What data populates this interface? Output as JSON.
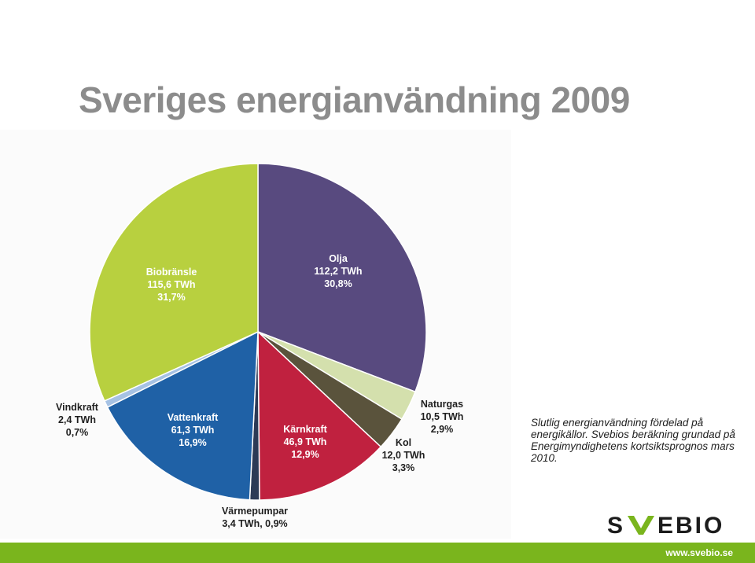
{
  "title": "Sveriges energianvändning 2009",
  "note": "Slutlig energianvändning fördelad på energikällor. Svebios beräkning grundad på Energimyndighetens kortsiktsprognos mars 2010.",
  "logo": {
    "text": "SVEBIO",
    "accent": "#7ab51d",
    "dark": "#1c1c1c"
  },
  "footer": {
    "url": "www.svebio.se",
    "bar_color": "#7ab51d"
  },
  "chart_data": {
    "type": "pie",
    "unit": "TWh",
    "slices": [
      {
        "name": "Olja",
        "value": 112.2,
        "value_label": "112,2 TWh",
        "percent_label": "30,8%",
        "color": "#584a7f"
      },
      {
        "name": "Naturgas",
        "value": 10.5,
        "value_label": "10,5 TWh",
        "percent_label": "2,9%",
        "color": "#d4e0ad"
      },
      {
        "name": "Kol",
        "value": 12.0,
        "value_label": "12,0 TWh",
        "percent_label": "3,3%",
        "color": "#5a533c"
      },
      {
        "name": "Kärnkraft",
        "value": 46.9,
        "value_label": "46,9 TWh",
        "percent_label": "12,9%",
        "color": "#c0213f"
      },
      {
        "name": "Värmepumpar",
        "value": 3.4,
        "value_label": "3,4 TWh, 0,9%",
        "percent_label": "",
        "color": "#2c3a56"
      },
      {
        "name": "Vattenkraft",
        "value": 61.3,
        "value_label": "61,3 TWh",
        "percent_label": "16,9%",
        "color": "#1f61a6"
      },
      {
        "name": "Vindkraft",
        "value": 2.4,
        "value_label": "2,4 TWh",
        "percent_label": "0,7%",
        "color": "#a6c2e4"
      },
      {
        "name": "Biobränsle",
        "value": 115.6,
        "value_label": "115,6 TWh",
        "percent_label": "31,7%",
        "color": "#b8d03f"
      }
    ]
  }
}
